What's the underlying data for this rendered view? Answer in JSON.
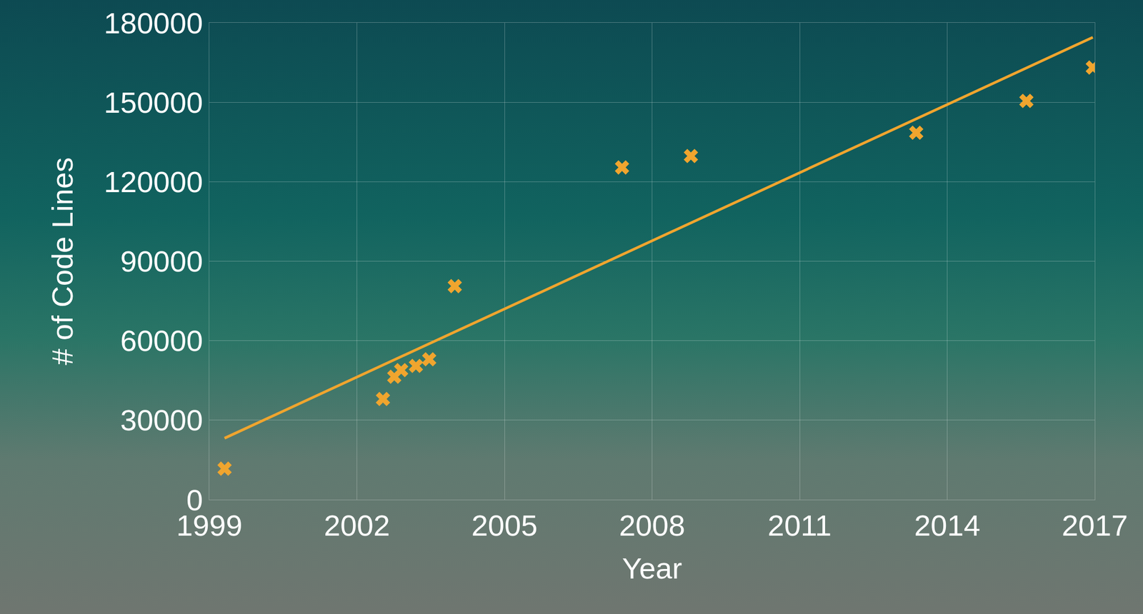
{
  "chart_data": {
    "type": "scatter",
    "x_label": "Year",
    "y_label": "# of Code Lines",
    "xlim": [
      1999,
      2017
    ],
    "xticks": [
      1999,
      2002,
      2005,
      2008,
      2011,
      2014,
      2017
    ],
    "ylim": [
      0,
      180000
    ],
    "yticks": [
      0,
      30000,
      60000,
      90000,
      120000,
      150000,
      180000
    ],
    "grid": true,
    "series": [
      {
        "type": "scatter",
        "color": "#f0a52e",
        "marker": "x",
        "x": [
          1999.31,
          2002.53,
          2002.76,
          2002.9,
          2003.2,
          2003.47,
          2003.99,
          2007.39,
          2008.79,
          2013.37,
          2015.61,
          2016.96
        ],
        "values": [
          11700,
          38000,
          46400,
          48900,
          50500,
          53000,
          80600,
          125400,
          129700,
          138500,
          150500,
          163100
        ]
      },
      {
        "type": "line",
        "color": "#f0a52e",
        "line_style": "solid",
        "x": [
          1999.31,
          2016.96
        ],
        "values": [
          23200,
          174500
        ]
      }
    ]
  }
}
